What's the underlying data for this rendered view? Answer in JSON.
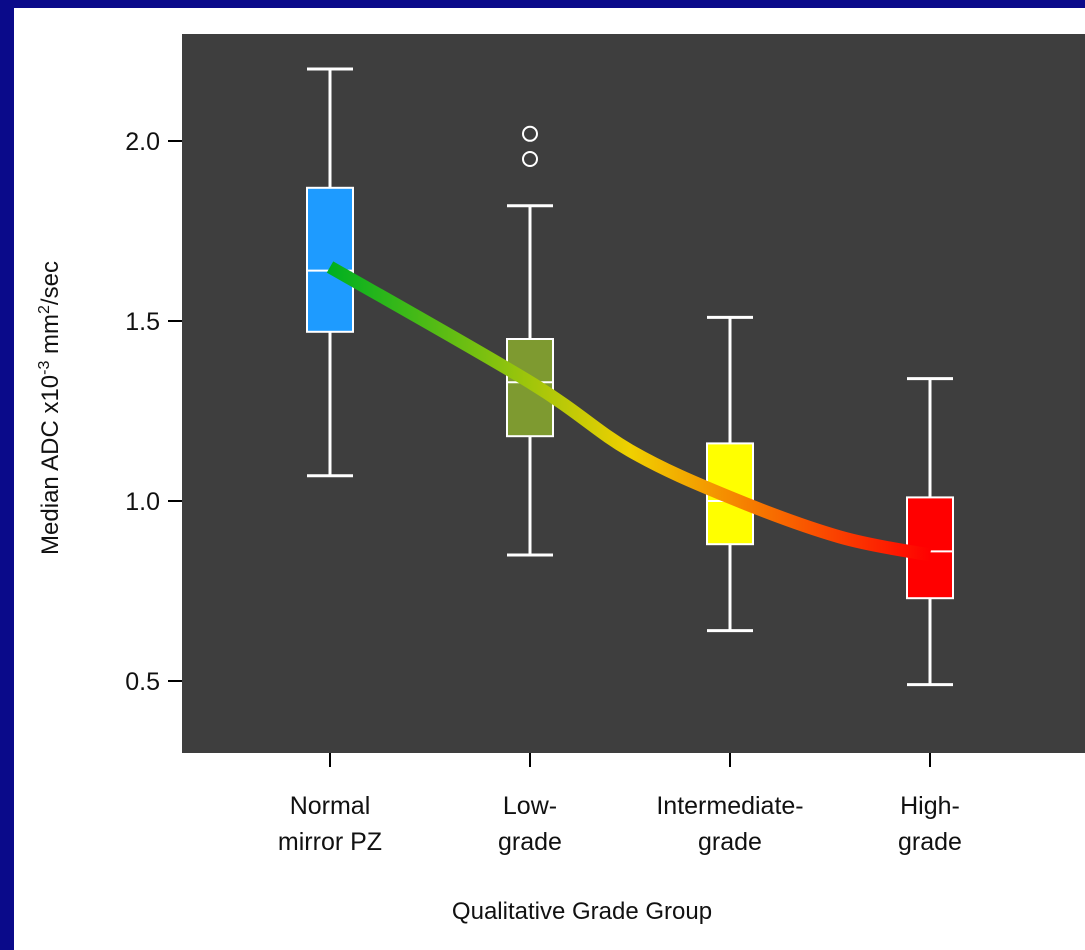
{
  "chart_data": {
    "type": "boxplot",
    "categories": [
      [
        "Normal",
        "mirror PZ"
      ],
      [
        "Low-",
        "grade"
      ],
      [
        "Intermediate-",
        "grade"
      ],
      [
        "High-",
        "grade"
      ]
    ],
    "boxes": [
      {
        "whisker_low": 1.07,
        "q1": 1.47,
        "median": 1.64,
        "q3": 1.87,
        "whisker_high": 2.2,
        "outliers": [],
        "color": "#1e9bff"
      },
      {
        "whisker_low": 0.85,
        "q1": 1.18,
        "median": 1.33,
        "q3": 1.45,
        "whisker_high": 1.82,
        "outliers": [
          1.95,
          2.02
        ],
        "color": "#7e9a30"
      },
      {
        "whisker_low": 0.64,
        "q1": 0.88,
        "median": 1.0,
        "q3": 1.16,
        "whisker_high": 1.51,
        "outliers": [],
        "color": "#ffff00"
      },
      {
        "whisker_low": 0.49,
        "q1": 0.73,
        "median": 0.86,
        "q3": 1.01,
        "whisker_high": 1.34,
        "outliers": [],
        "color": "#ff0000"
      }
    ],
    "trend_line": {
      "points": [
        {
          "x": 0,
          "y": 1.65
        },
        {
          "x": 1,
          "y": 1.33
        },
        {
          "x": 1.5,
          "y": 1.14
        },
        {
          "x": 2,
          "y": 1.01
        },
        {
          "x": 2.55,
          "y": 0.9
        },
        {
          "x": 3,
          "y": 0.85
        }
      ],
      "colors": [
        "#00b020",
        "#f0d000",
        "#ff0000"
      ]
    },
    "yticks": [
      0.5,
      1.0,
      1.5,
      2.0
    ],
    "ytick_labels": [
      "0.5",
      "1.0",
      "1.5",
      "2.0"
    ],
    "ylim": [
      0.3,
      2.3
    ],
    "ylabel": {
      "pre": "Median ADC x10",
      "exp1": "-3",
      "mid": " mm",
      "exp2": "2",
      "post": "/sec"
    },
    "xlabel": "Qualitative Grade Group",
    "plot_background": "#3e3e3e",
    "grid": false
  }
}
